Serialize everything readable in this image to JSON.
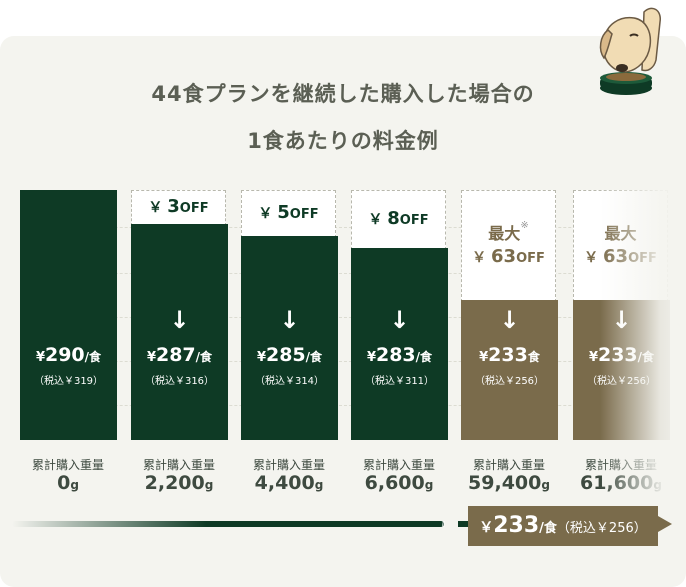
{
  "title_line1": "44食プランを継続した購入した場合の",
  "title_line2": "1食あたりの料金例",
  "colors": {
    "green": "#0e3a25",
    "brown": "#7a6b4b",
    "card_bg": "#f4f4ef"
  },
  "illustration": "dog-eating-icon",
  "chart_data": {
    "type": "bar",
    "title": "44食プランを継続した購入した場合の 1食あたりの料金例",
    "ylim": [
      0,
      290
    ],
    "categories": [
      "0",
      "2,200",
      "4,400",
      "6,600",
      "59,400",
      "61,600"
    ],
    "series": [
      {
        "values": [
          290,
          287,
          285,
          283,
          233,
          233
        ]
      }
    ],
    "columns": [
      {
        "off_label": "",
        "off_num": "",
        "max_label": "",
        "price_yen": "¥",
        "price": "290",
        "unit": "/食",
        "tax": "（税込￥319）",
        "cum_label": "累計購入重量",
        "cum_value": "0",
        "cum_unit": "g",
        "tone": "green"
      },
      {
        "off_label": "￥",
        "off_num": "3",
        "off_word": "OFF",
        "max_label": "",
        "price_yen": "¥",
        "price": "287",
        "unit": "/食",
        "tax": "（税込￥316）",
        "cum_label": "累計購入重量",
        "cum_value": "2,200",
        "cum_unit": "g",
        "tone": "green"
      },
      {
        "off_label": "￥",
        "off_num": "5",
        "off_word": "OFF",
        "max_label": "",
        "price_yen": "¥",
        "price": "285",
        "unit": "/食",
        "tax": "（税込￥314）",
        "cum_label": "累計購入重量",
        "cum_value": "4,400",
        "cum_unit": "g",
        "tone": "green"
      },
      {
        "off_label": "￥",
        "off_num": "8",
        "off_word": "OFF",
        "max_label": "",
        "price_yen": "¥",
        "price": "283",
        "unit": "/食",
        "tax": "（税込￥311）",
        "cum_label": "累計購入重量",
        "cum_value": "6,600",
        "cum_unit": "g",
        "tone": "green"
      },
      {
        "off_label": "￥",
        "off_num": "63",
        "off_word": "OFF",
        "max_label": "最大",
        "asterisk": "※",
        "price_yen": "¥",
        "price": "233",
        "unit": "食",
        "tax": "（税込￥256）",
        "cum_label": "累計購入重量",
        "cum_value": "59,400",
        "cum_unit": "g",
        "tone": "brown"
      },
      {
        "off_label": "￥",
        "off_num": "63",
        "off_word": "OFF",
        "max_label": "最大",
        "asterisk": "",
        "price_yen": "¥",
        "price": "233",
        "unit": "/食",
        "tax": "（税込￥256）",
        "cum_label": "累計購入重量",
        "cum_value": "61,600",
        "cum_unit": "g",
        "tone": "brown"
      }
    ]
  },
  "final_badge": {
    "yen": "￥",
    "price": "233",
    "unit": "/食",
    "tax": "（税込￥256）"
  }
}
